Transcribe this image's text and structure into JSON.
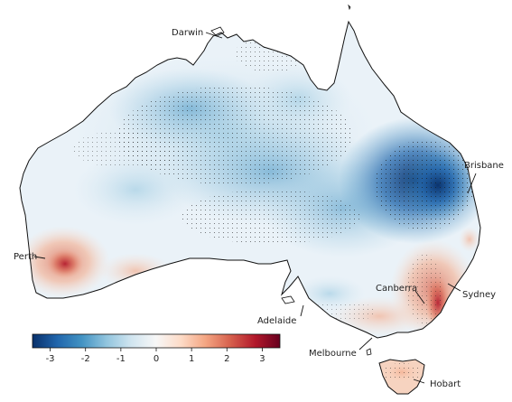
{
  "map": {
    "cities": [
      {
        "id": "darwin",
        "label": "Darwin"
      },
      {
        "id": "brisbane",
        "label": "Brisbane"
      },
      {
        "id": "perth",
        "label": "Perth"
      },
      {
        "id": "canberra",
        "label": "Canberra"
      },
      {
        "id": "sydney",
        "label": "Sydney"
      },
      {
        "id": "adelaide",
        "label": "Adelaide"
      },
      {
        "id": "melbourne",
        "label": "Melbourne"
      },
      {
        "id": "hobart",
        "label": "Hobart"
      }
    ],
    "colorbar": {
      "min": -3.5,
      "max": 3.5,
      "ticks": [
        {
          "value": -3,
          "label": "-3"
        },
        {
          "value": -2,
          "label": "-2"
        },
        {
          "value": -1,
          "label": "-1"
        },
        {
          "value": 0,
          "label": "0"
        },
        {
          "value": 1,
          "label": "1"
        },
        {
          "value": 2,
          "label": "2"
        },
        {
          "value": 3,
          "label": "3"
        }
      ],
      "colors": [
        "#08306b",
        "#2166ac",
        "#4393c3",
        "#92c5de",
        "#d1e5f0",
        "#f7f7f7",
        "#fddbc7",
        "#f4a582",
        "#d6604d",
        "#b2182b",
        "#67001f"
      ]
    }
  }
}
